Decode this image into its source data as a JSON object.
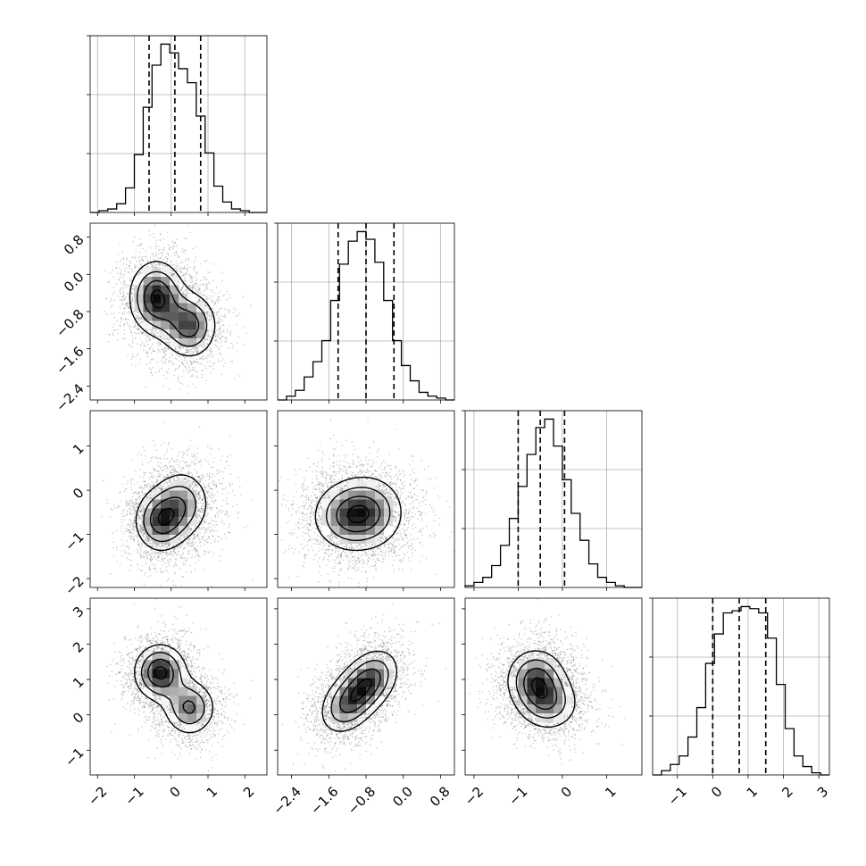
{
  "chart_data": {
    "type": "corner",
    "grid": true,
    "parameters": [
      {
        "index": 0,
        "range": [
          -2.2,
          2.6
        ],
        "ticks": [
          -2,
          -1,
          0,
          1,
          2
        ],
        "tick_labels": [
          "−2",
          "−1",
          "0",
          "1",
          "2"
        ],
        "quantiles": [
          -0.6,
          0.1,
          0.8
        ]
      },
      {
        "index": 1,
        "range": [
          -2.7,
          1.1
        ],
        "ticks": [
          -2.4,
          -1.6,
          -0.8,
          0.0,
          0.8
        ],
        "tick_labels": [
          "−2.4",
          "−1.6",
          "−0.8",
          "0.0",
          "0.8"
        ],
        "quantiles": [
          -1.4,
          -0.8,
          -0.2
        ]
      },
      {
        "index": 2,
        "range": [
          -2.2,
          1.8
        ],
        "ticks": [
          -2,
          -1,
          0,
          1
        ],
        "tick_labels": [
          "−2",
          "−1",
          "0",
          "1"
        ],
        "quantiles": [
          -1.0,
          -0.5,
          0.05
        ]
      },
      {
        "index": 3,
        "range": [
          -1.7,
          3.3
        ],
        "ticks": [
          -1,
          0,
          1,
          2,
          3
        ],
        "tick_labels": [
          "−1",
          "0",
          "1",
          "2",
          "3"
        ],
        "quantiles": [
          0.0,
          0.75,
          1.5
        ]
      }
    ],
    "histograms": [
      {
        "param": 0,
        "bins": [
          -2.2,
          -1.96,
          -1.72,
          -1.48,
          -1.24,
          -1.0,
          -0.76,
          -0.52,
          -0.28,
          -0.04,
          0.2,
          0.44,
          0.68,
          0.92,
          1.16,
          1.4,
          1.64,
          1.88,
          2.12,
          2.36,
          2.6
        ],
        "counts": [
          0.0,
          0.01,
          0.02,
          0.05,
          0.14,
          0.33,
          0.6,
          0.84,
          0.96,
          0.91,
          0.82,
          0.74,
          0.55,
          0.34,
          0.15,
          0.06,
          0.02,
          0.01,
          0.0,
          0.0
        ]
      },
      {
        "param": 1,
        "bins": [
          -2.7,
          -2.51,
          -2.32,
          -2.13,
          -1.94,
          -1.75,
          -1.56,
          -1.37,
          -1.18,
          -0.99,
          -0.8,
          -0.61,
          -0.42,
          -0.23,
          -0.04,
          0.15,
          0.34,
          0.53,
          0.72,
          0.91,
          1.1
        ],
        "counts": [
          0.0,
          0.02,
          0.05,
          0.12,
          0.2,
          0.31,
          0.52,
          0.71,
          0.83,
          0.88,
          0.84,
          0.72,
          0.52,
          0.31,
          0.18,
          0.1,
          0.04,
          0.02,
          0.01,
          0.0
        ]
      },
      {
        "param": 2,
        "bins": [
          -2.2,
          -2.0,
          -1.8,
          -1.6,
          -1.4,
          -1.2,
          -1.0,
          -0.8,
          -0.6,
          -0.4,
          -0.2,
          0.0,
          0.2,
          0.4,
          0.6,
          0.8,
          1.0,
          1.2,
          1.4,
          1.6,
          1.8
        ],
        "counts": [
          0.01,
          0.03,
          0.06,
          0.13,
          0.25,
          0.41,
          0.6,
          0.79,
          0.95,
          1.0,
          0.84,
          0.64,
          0.44,
          0.28,
          0.14,
          0.06,
          0.03,
          0.01,
          0.0,
          0.0
        ]
      },
      {
        "param": 3,
        "bins": [
          -1.7,
          -1.45,
          -1.2,
          -0.95,
          -0.7,
          -0.45,
          -0.2,
          0.05,
          0.3,
          0.55,
          0.8,
          1.05,
          1.3,
          1.55,
          1.8,
          2.05,
          2.3,
          2.55,
          2.8,
          3.05,
          3.3
        ],
        "counts": [
          0.0,
          0.02,
          0.05,
          0.09,
          0.18,
          0.32,
          0.53,
          0.67,
          0.77,
          0.78,
          0.8,
          0.79,
          0.77,
          0.65,
          0.43,
          0.22,
          0.09,
          0.04,
          0.01,
          0.0
        ]
      }
    ],
    "pairs": [
      {
        "x_param": 0,
        "y_param": 1,
        "peaks": [
          {
            "x": -0.4,
            "y": -0.5,
            "sx": 0.42,
            "sy": 0.45,
            "r": 0.0,
            "w": 1.0
          },
          {
            "x": 0.5,
            "y": -1.1,
            "sx": 0.42,
            "sy": 0.4,
            "r": 0.0,
            "w": 0.85
          }
        ]
      },
      {
        "x_param": 0,
        "y_param": 2,
        "peaks": [
          {
            "x": -0.3,
            "y": -0.7,
            "sx": 0.4,
            "sy": 0.4,
            "r": 0.0,
            "w": 1.0
          },
          {
            "x": 0.3,
            "y": -0.3,
            "sx": 0.45,
            "sy": 0.45,
            "r": 0.0,
            "w": 0.75
          }
        ]
      },
      {
        "x_param": 1,
        "y_param": 2,
        "peaks": [
          {
            "x": -0.75,
            "y": -0.5,
            "sx": 0.45,
            "sy": 0.48,
            "r": 0.0,
            "w": 1.0
          },
          {
            "x": -1.3,
            "y": -0.6,
            "sx": 0.42,
            "sy": 0.45,
            "r": 0.0,
            "w": 0.7
          }
        ]
      },
      {
        "x_param": 0,
        "y_param": 3,
        "peaks": [
          {
            "x": -0.3,
            "y": 1.2,
            "sx": 0.4,
            "sy": 0.45,
            "r": 0.0,
            "w": 1.0
          },
          {
            "x": 0.5,
            "y": 0.2,
            "sx": 0.4,
            "sy": 0.45,
            "r": 0.0,
            "w": 0.75
          }
        ]
      },
      {
        "x_param": 1,
        "y_param": 3,
        "peaks": [
          {
            "x": -0.7,
            "y": 1.0,
            "sx": 0.35,
            "sy": 0.5,
            "r": 0.3,
            "w": 1.0
          },
          {
            "x": -1.2,
            "y": 0.3,
            "sx": 0.35,
            "sy": 0.5,
            "r": 0.3,
            "w": 0.9
          }
        ]
      },
      {
        "x_param": 2,
        "y_param": 3,
        "peaks": [
          {
            "x": -0.6,
            "y": 1.0,
            "sx": 0.38,
            "sy": 0.5,
            "r": 0.0,
            "w": 1.0
          },
          {
            "x": -0.3,
            "y": 0.3,
            "sx": 0.4,
            "sy": 0.45,
            "r": 0.0,
            "w": 0.7
          }
        ]
      }
    ]
  }
}
